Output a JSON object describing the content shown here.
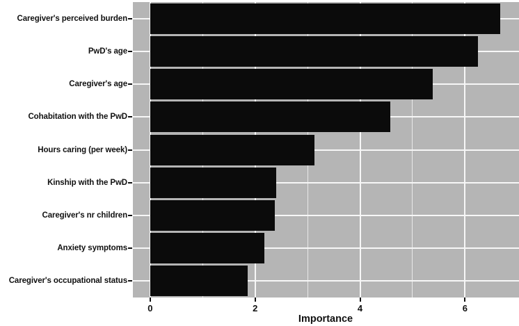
{
  "figure": {
    "background_color": "#ffffff",
    "panel_color": "#b5b5b5",
    "bar_color": "#0b0b0b",
    "gridline_color": "#f7f7f7",
    "text_color": "#111111"
  },
  "chart_data": {
    "type": "bar",
    "orientation": "horizontal",
    "title": "",
    "xlabel": "Importance",
    "ylabel": "",
    "categories": [
      "Caregiver's perceived burden",
      "PwD's age",
      "Caregiver's age",
      "Cohabitation with the PwD",
      "Hours caring (per week)",
      "Kinship with the PwD",
      "Caregiver's nr children",
      "Anxiety symptoms",
      "Caregiver's occupational status"
    ],
    "values": [
      6.67,
      6.25,
      5.39,
      4.58,
      3.13,
      2.4,
      2.38,
      2.17,
      1.86
    ],
    "xlim": [
      -0.33,
      7.03
    ],
    "x_ticks": [
      0,
      2,
      4,
      6
    ],
    "x_tick_labels": [
      "0",
      "2",
      "4",
      "6"
    ],
    "x_minor_ticks": [
      1,
      3,
      5
    ],
    "grid": "on",
    "legend": "none",
    "bar_order": "descending"
  }
}
